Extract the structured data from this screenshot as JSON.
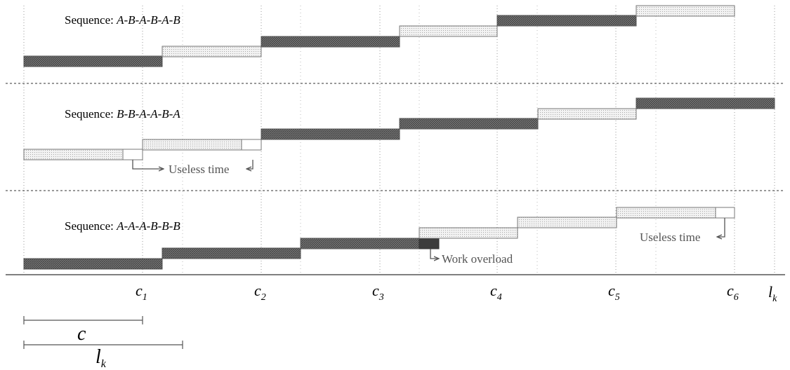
{
  "rows": [
    {
      "label_prefix": "Sequence: ",
      "sequence": "A-B-A-B-A-B"
    },
    {
      "label_prefix": "Sequence: ",
      "sequence": "B-B-A-A-B-A"
    },
    {
      "label_prefix": "Sequence: ",
      "sequence": "A-A-A-B-B-B"
    }
  ],
  "annotations": {
    "useless_time_1": "Useless time",
    "useless_time_2": "Useless time",
    "work_overload": "Work overload"
  },
  "axis": {
    "ticks": [
      {
        "base": "c",
        "sub": "1"
      },
      {
        "base": "c",
        "sub": "2"
      },
      {
        "base": "c",
        "sub": "3"
      },
      {
        "base": "c",
        "sub": "4"
      },
      {
        "base": "c",
        "sub": "5"
      },
      {
        "base": "c",
        "sub": "6"
      }
    ],
    "end": {
      "base": "l",
      "sub": "k"
    }
  },
  "scale": {
    "cycle": {
      "base": "c"
    },
    "length": {
      "base": "l",
      "sub": "k"
    }
  },
  "colors": {
    "A_fill": "#6a6a6a",
    "B_fill": "#eeeeee",
    "overload_fill": "#3c3c3c",
    "line": "#555555"
  }
}
